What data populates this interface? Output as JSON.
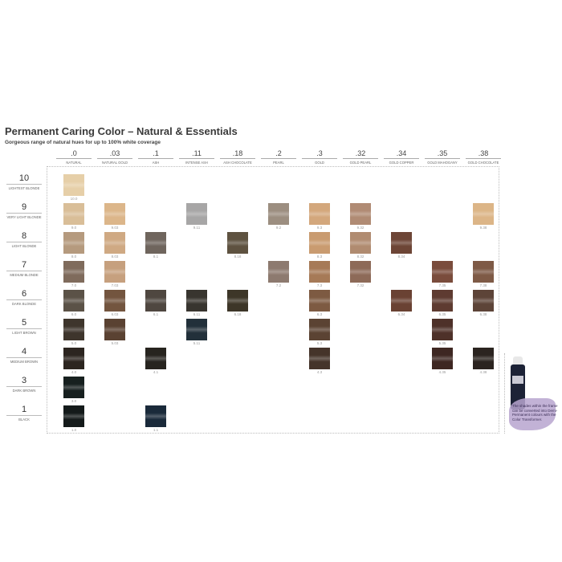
{
  "header": {
    "title": "Permanent Caring Color – Natural & Essentials",
    "subtitle": "Gorgeous range of natural hues for up to 100% white coverage"
  },
  "columns": [
    {
      "code": ".0",
      "name": "NATURAL"
    },
    {
      "code": ".03",
      "name": "NATURAL GOLD"
    },
    {
      "code": ".1",
      "name": "ASH"
    },
    {
      "code": ".11",
      "name": "INTENSE ASH"
    },
    {
      "code": ".18",
      "name": "ASH CHOCOLATE"
    },
    {
      "code": ".2",
      "name": "PEARL"
    },
    {
      "code": ".3",
      "name": "GOLD"
    },
    {
      "code": ".32",
      "name": "GOLD PEARL"
    },
    {
      "code": ".34",
      "name": "GOLD COPPER"
    },
    {
      "code": ".35",
      "name": "GOLD MAHOGANY"
    },
    {
      "code": ".38",
      "name": "GOLD CHOCOLATE"
    }
  ],
  "rows": [
    {
      "level": "10",
      "name": "LIGHTEST BLONDE",
      "swatches": [
        {
          "col": 0,
          "code": "10.0",
          "color": "#e6cfa8"
        }
      ]
    },
    {
      "level": "9",
      "name": "VERY LIGHT BLONDE",
      "swatches": [
        {
          "col": 0,
          "code": "9.0",
          "color": "#d9be98"
        },
        {
          "col": 1,
          "code": "9.03",
          "color": "#dcb68a"
        },
        {
          "col": 3,
          "code": "9.11",
          "color": "#a7a6a6"
        },
        {
          "col": 5,
          "code": "9.2",
          "color": "#9c8e80"
        },
        {
          "col": 6,
          "code": "9.3",
          "color": "#d3a77c"
        },
        {
          "col": 7,
          "code": "9.32",
          "color": "#b08b74"
        },
        {
          "col": 10,
          "code": "9.38",
          "color": "#dcb587"
        }
      ]
    },
    {
      "level": "8",
      "name": "LIGHT BLONDE",
      "swatches": [
        {
          "col": 0,
          "code": "8.0",
          "color": "#b59a7e"
        },
        {
          "col": 1,
          "code": "8.03",
          "color": "#cfa983"
        },
        {
          "col": 2,
          "code": "8.1",
          "color": "#6f655d"
        },
        {
          "col": 4,
          "code": "8.18",
          "color": "#5e5240"
        },
        {
          "col": 6,
          "code": "8.3",
          "color": "#c99b70"
        },
        {
          "col": 7,
          "code": "8.32",
          "color": "#b08b70"
        },
        {
          "col": 8,
          "code": "8.34",
          "color": "#6d4536"
        }
      ]
    },
    {
      "level": "7",
      "name": "MEDIUM BLONDE",
      "swatches": [
        {
          "col": 0,
          "code": "7.0",
          "color": "#7f6b5c"
        },
        {
          "col": 1,
          "code": "7.03",
          "color": "#c6a07e"
        },
        {
          "col": 5,
          "code": "7.2",
          "color": "#8d7a6f"
        },
        {
          "col": 6,
          "code": "7.3",
          "color": "#a67a57"
        },
        {
          "col": 7,
          "code": "7.32",
          "color": "#8d6a58"
        },
        {
          "col": 9,
          "code": "7.35",
          "color": "#7a4c3c"
        },
        {
          "col": 10,
          "code": "7.38",
          "color": "#7e5a46"
        }
      ]
    },
    {
      "level": "6",
      "name": "DARK BLONDE",
      "swatches": [
        {
          "col": 0,
          "code": "6.0",
          "color": "#5b5247"
        },
        {
          "col": 1,
          "code": "6.03",
          "color": "#73553f"
        },
        {
          "col": 2,
          "code": "6.1",
          "color": "#4f4740"
        },
        {
          "col": 3,
          "code": "6.11",
          "color": "#38352f"
        },
        {
          "col": 4,
          "code": "6.18",
          "color": "#3d3628"
        },
        {
          "col": 6,
          "code": "6.3",
          "color": "#7d5a42"
        },
        {
          "col": 8,
          "code": "6.34",
          "color": "#6a4233"
        },
        {
          "col": 9,
          "code": "6.35",
          "color": "#5e3b31"
        },
        {
          "col": 10,
          "code": "6.38",
          "color": "#5d4438"
        }
      ]
    },
    {
      "level": "5",
      "name": "LIGHT BROWN",
      "swatches": [
        {
          "col": 0,
          "code": "5.0",
          "color": "#3e352c"
        },
        {
          "col": 1,
          "code": "5.03",
          "color": "#5a4232"
        },
        {
          "col": 3,
          "code": "5.11",
          "color": "#22303a"
        },
        {
          "col": 6,
          "code": "5.3",
          "color": "#5b4333"
        },
        {
          "col": 9,
          "code": "5.35",
          "color": "#4e3129"
        }
      ]
    },
    {
      "level": "4",
      "name": "MEDIUM BROWN",
      "swatches": [
        {
          "col": 0,
          "code": "4.0",
          "color": "#2c2520"
        },
        {
          "col": 2,
          "code": "4.1",
          "color": "#27241f"
        },
        {
          "col": 6,
          "code": "4.3",
          "color": "#45342a"
        },
        {
          "col": 9,
          "code": "4.35",
          "color": "#3e2722"
        },
        {
          "col": 10,
          "code": "4.38",
          "color": "#2b2420"
        }
      ]
    },
    {
      "level": "3",
      "name": "DARK BROWN",
      "swatches": [
        {
          "col": 0,
          "code": "3.0",
          "color": "#17201f"
        }
      ]
    },
    {
      "level": "1",
      "name": "BLACK",
      "swatches": [
        {
          "col": 0,
          "code": "1.0",
          "color": "#141a1a"
        },
        {
          "col": 2,
          "code": "1.1",
          "color": "#1a2a3a"
        }
      ]
    }
  ],
  "note": {
    "text": "The shades within the frame can be converted into Demi-Permanent colours with the Color Transformer.",
    "accent": "#b7a4cf"
  }
}
